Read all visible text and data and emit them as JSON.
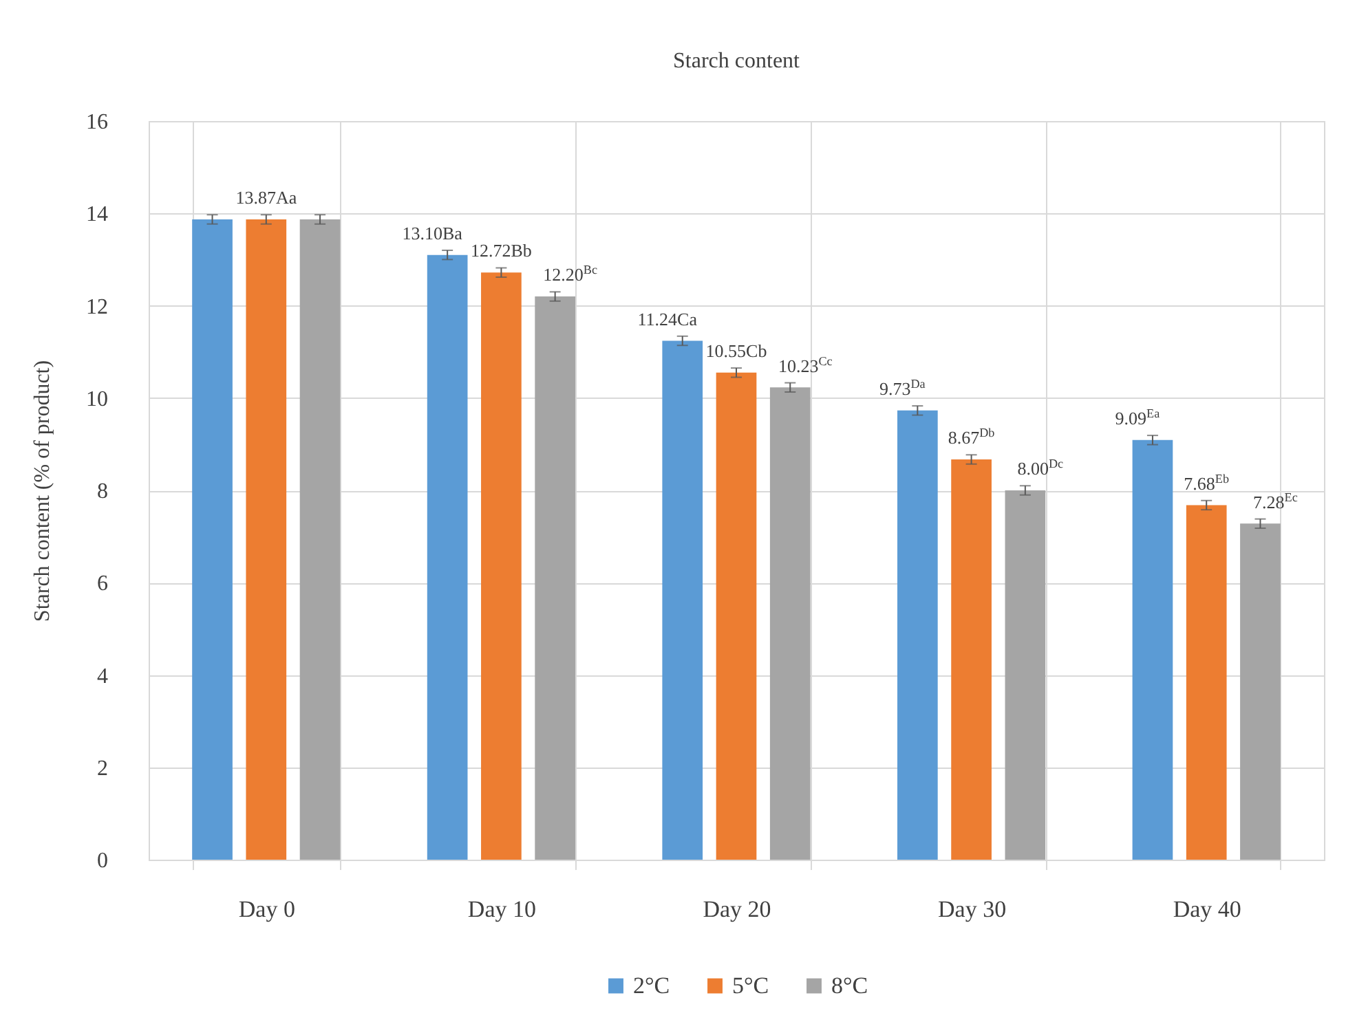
{
  "chart_data": {
    "type": "bar",
    "title": "Starch content",
    "ylabel": "Starch content (% of product)",
    "categories": [
      "Day 0",
      "Day 10",
      "Day 20",
      "Day 30",
      "Day 40"
    ],
    "series": [
      {
        "name": "2°C",
        "color": "#5b9bd5",
        "values": [
          13.87,
          13.1,
          11.24,
          9.73,
          9.09
        ],
        "errors": [
          0.1,
          0.1,
          0.1,
          0.1,
          0.1
        ],
        "value_labels": [
          null,
          "13.10Ba",
          "11.24Ca",
          "9.73$^{Da}$",
          "9.09$^{Ea}$"
        ]
      },
      {
        "name": "5°C",
        "color": "#ed7d31",
        "values": [
          13.87,
          12.72,
          10.55,
          8.67,
          7.68
        ],
        "errors": [
          0.1,
          0.1,
          0.1,
          0.1,
          0.1
        ],
        "value_labels": [
          "13.87Aa",
          "12.72Bb",
          "10.55Cb",
          "8.67$^{Db}$",
          "7.68$^{Eb}$"
        ]
      },
      {
        "name": "8°C",
        "color": "#a5a5a5",
        "values": [
          13.87,
          12.2,
          10.23,
          8.0,
          7.28
        ],
        "errors": [
          0.1,
          0.1,
          0.1,
          0.1,
          0.1
        ],
        "value_labels": [
          null,
          "12.20$^{Bc}$",
          "10.23$^{Cc}$",
          "8.00$^{Dc}$",
          "7.28$^{Ec}$"
        ]
      }
    ],
    "ylim": [
      0,
      16
    ],
    "yticks": [
      0,
      2,
      4,
      6,
      8,
      10,
      12,
      14,
      16
    ],
    "grid": true,
    "legend": "bottom"
  }
}
